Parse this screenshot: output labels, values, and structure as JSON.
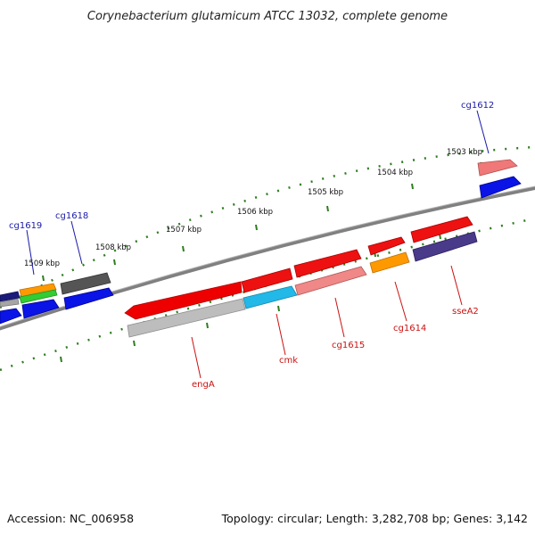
{
  "title": "Corynebacterium glutamicum ATCC 13032, complete genome",
  "footer": {
    "accession": "Accession: NC_006958",
    "summary": "Topology: circular; Length: 3,282,708 bp; Genes: 3,142"
  },
  "map": {
    "backbone_color": "#808080",
    "tick_color": "#2e7d1f",
    "tick_labels": [
      "1503 kbp",
      "1504 kbp",
      "1505 kbp",
      "1506 kbp",
      "1507 kbp",
      "1508 kbp",
      "1509 kbp"
    ],
    "gene_labels": [
      {
        "text": "cg1612",
        "color": "#1a1aa8"
      },
      {
        "text": "cg1618",
        "color": "#1a1aa8"
      },
      {
        "text": "cg1619",
        "color": "#1a1aa8"
      },
      {
        "text": "engA",
        "color": "#cc1111"
      },
      {
        "text": "cmk",
        "color": "#cc1111"
      },
      {
        "text": "cg1615",
        "color": "#cc1111"
      },
      {
        "text": "cg1614",
        "color": "#cc1111"
      },
      {
        "text": "sseA2",
        "color": "#cc1111"
      }
    ]
  }
}
